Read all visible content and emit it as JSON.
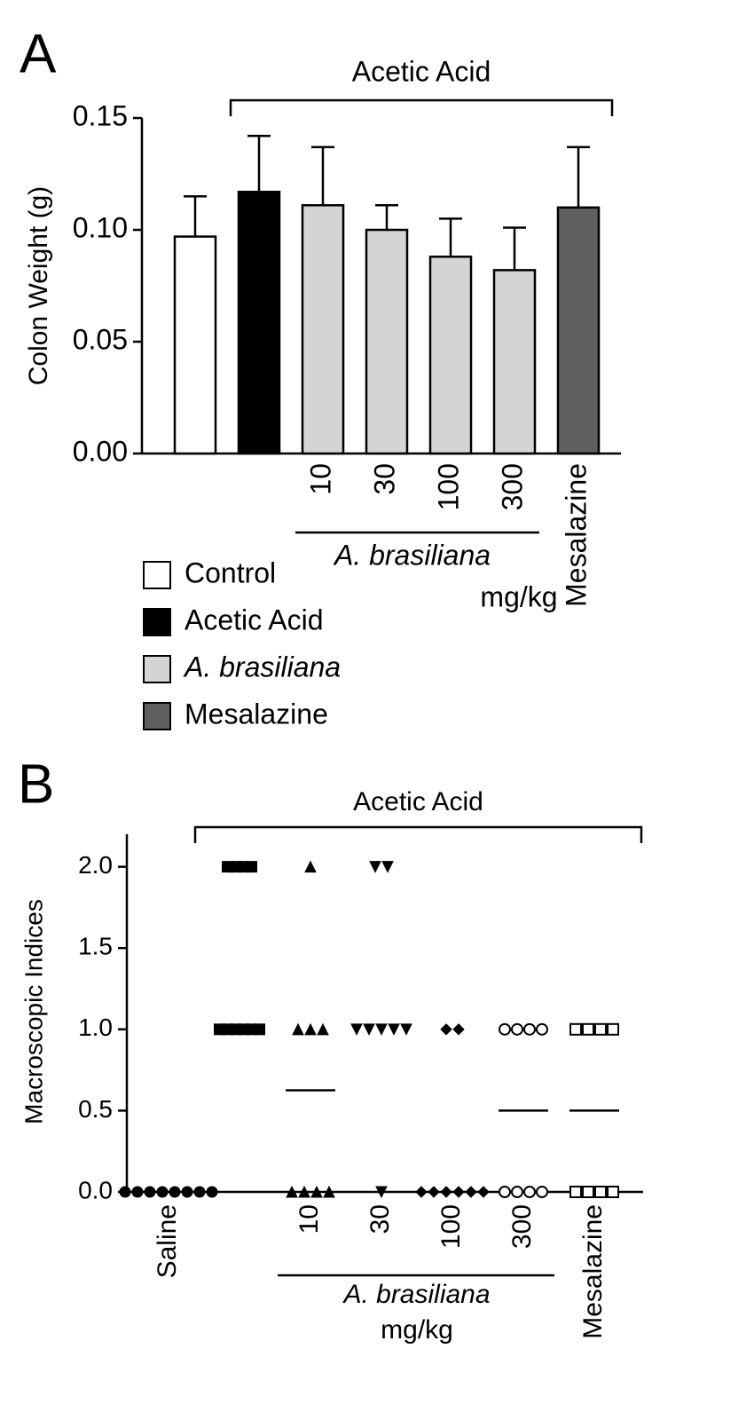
{
  "chart_data": [
    {
      "type": "bar",
      "panel_label": "A",
      "bracket_label": "Acetic Acid",
      "y_label": "Colon Weight (g)",
      "categories": [
        null,
        null,
        "10",
        "30",
        "100",
        "300",
        "Mesalazine"
      ],
      "group_label": "A. brasiliana",
      "unit_label": "mg/kg",
      "values": [
        0.097,
        0.117,
        0.111,
        0.1,
        0.088,
        0.082,
        0.11
      ],
      "errors": [
        0.018,
        0.025,
        0.026,
        0.011,
        0.017,
        0.019,
        0.027
      ],
      "colors": [
        "#ffffff",
        "#000000",
        "#d4d4d4",
        "#d4d4d4",
        "#d4d4d4",
        "#d4d4d4",
        "#606060"
      ],
      "ylim": [
        0,
        0.15
      ],
      "yticks": [
        {
          "value": 0,
          "label": "0.00"
        },
        {
          "value": 0.05,
          "label": "0.05"
        },
        {
          "value": 0.1,
          "label": "0.10"
        },
        {
          "value": 0.15,
          "label": "0.15"
        }
      ],
      "legend": [
        {
          "name": "Control",
          "color": "#ffffff"
        },
        {
          "name": "Acetic Acid",
          "color": "#000000"
        },
        {
          "name": "A. brasiliana",
          "color": "#d4d4d4"
        },
        {
          "name": "Mesalazine",
          "color": "#606060"
        }
      ]
    },
    {
      "type": "dot",
      "panel_label": "B",
      "bracket_label": "Acetic Acid",
      "y_label": "Macroscopic Indices",
      "categories": [
        "Saline",
        null,
        "10",
        "30",
        "100",
        "300",
        "Mesalazine"
      ],
      "group_label": "A. brasiliana",
      "unit_label": "mg/kg",
      "values": [
        [
          0,
          0,
          0,
          0,
          0,
          0,
          0,
          0
        ],
        [
          2,
          2,
          2,
          2,
          1,
          1,
          1,
          1,
          1,
          1
        ],
        [
          2,
          1,
          1,
          1,
          0,
          0,
          0,
          0
        ],
        [
          2,
          2,
          1,
          1,
          1,
          1,
          1,
          0
        ],
        [
          1,
          1,
          0,
          0,
          0,
          0,
          0,
          0
        ],
        [
          1,
          1,
          1,
          1,
          0,
          0,
          0,
          0
        ],
        [
          1,
          1,
          1,
          1,
          0,
          0,
          0,
          0
        ]
      ],
      "markers": [
        "circle",
        "square",
        "triangle",
        "triangle-down",
        "diamond",
        "circle-open",
        "square-open"
      ],
      "mean_lines": [
        null,
        null,
        0.625,
        null,
        null,
        0.5,
        0.5
      ],
      "ylim": [
        0,
        2.2
      ],
      "yticks": [
        {
          "value": 0,
          "label": "0.0"
        },
        {
          "value": 0.5,
          "label": "0.5"
        },
        {
          "value": 1,
          "label": "1.0"
        },
        {
          "value": 1.5,
          "label": "1.5"
        },
        {
          "value": 2,
          "label": "2.0"
        }
      ]
    }
  ]
}
